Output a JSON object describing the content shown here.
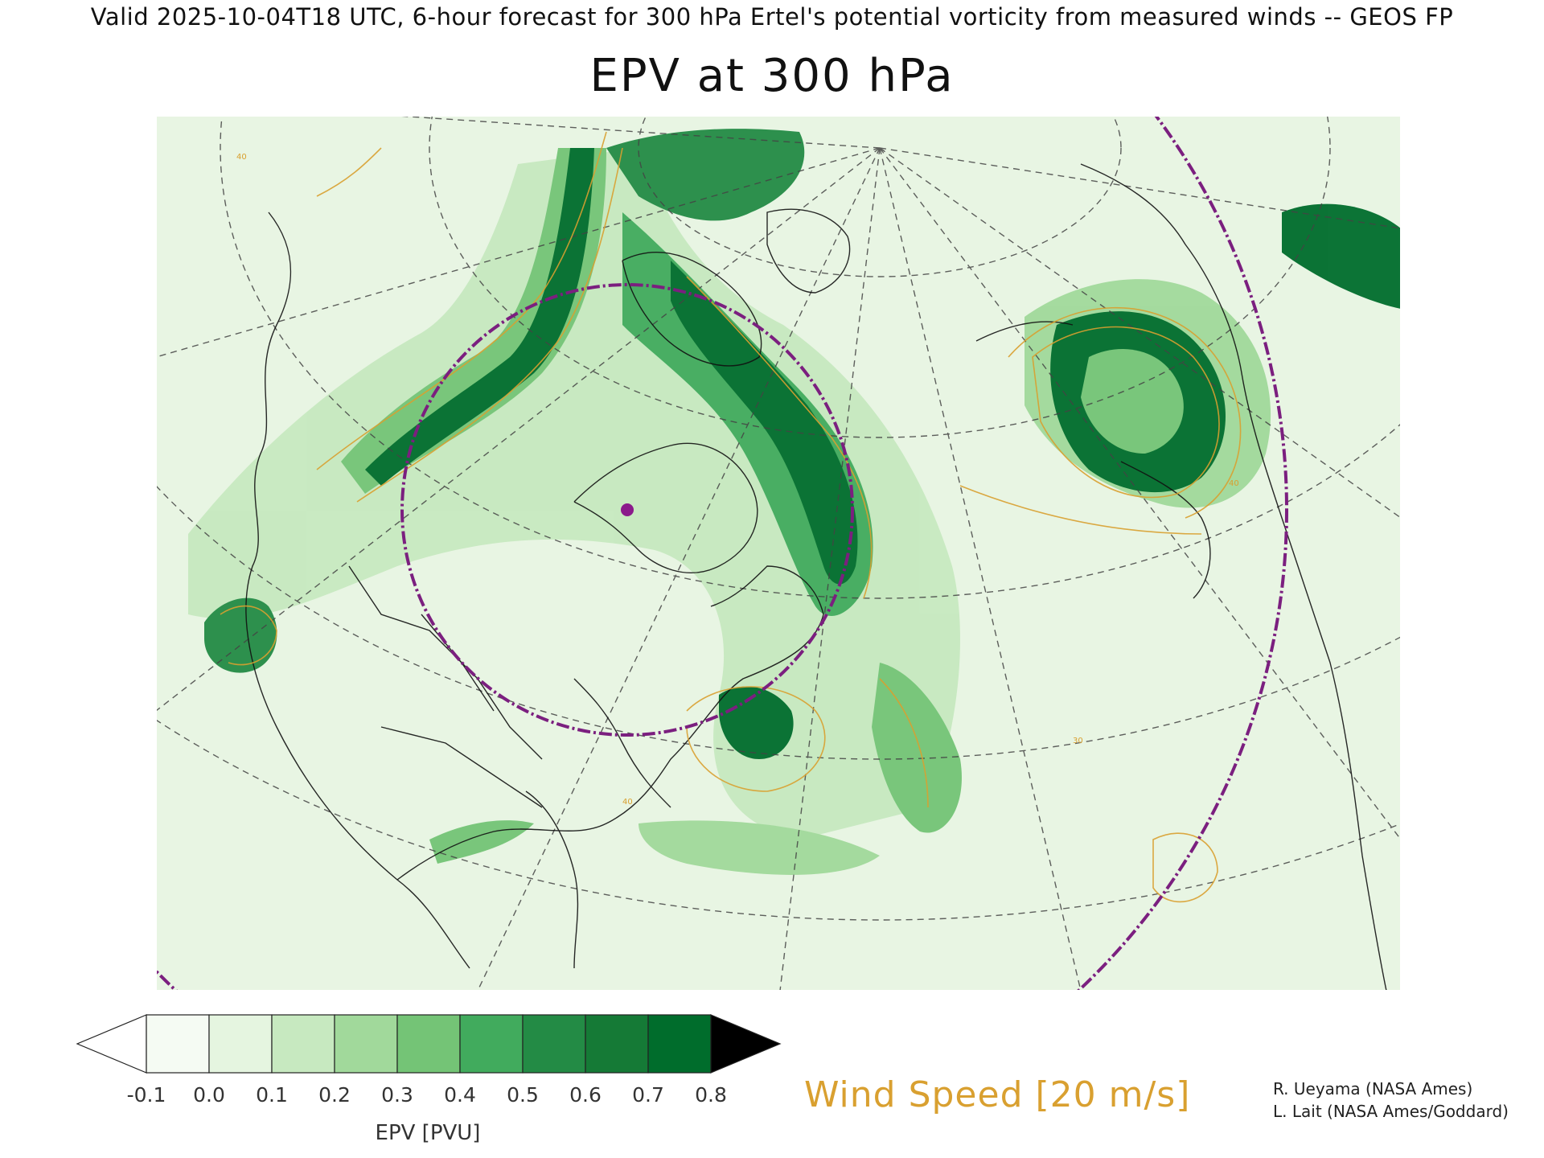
{
  "header": {
    "valid_line": "Valid 2025-10-04T18 UTC, 6-hour forecast for 300 hPa Ertel's potential vorticity from measured winds -- GEOS FP",
    "title": "EPV at 300 hPa"
  },
  "colorbar": {
    "ticks": [
      "-0.1",
      "0.0",
      "0.1",
      "0.2",
      "0.3",
      "0.4",
      "0.5",
      "0.6",
      "0.7",
      "0.8"
    ],
    "colors": [
      "#ffffff",
      "#f5fbf3",
      "#e5f5e0",
      "#c7e9c0",
      "#a1d99b",
      "#74c476",
      "#41ab5d",
      "#238b45",
      "#157a36",
      "#006d2c",
      "#000000"
    ],
    "label": "EPV [PVU]"
  },
  "contour_legend": {
    "label": "Wind Speed [20 m/s]",
    "color": "#d9a030"
  },
  "map_annotations": {
    "contour_values": [
      "40",
      "40",
      "30",
      "40"
    ],
    "range_ring_color": "#7b1f7f",
    "marker_color": "#8b1a8b"
  },
  "credits": {
    "line1": "R. Ueyama (NASA Ames)",
    "line2": "L. Lait (NASA Ames/Goddard)"
  }
}
